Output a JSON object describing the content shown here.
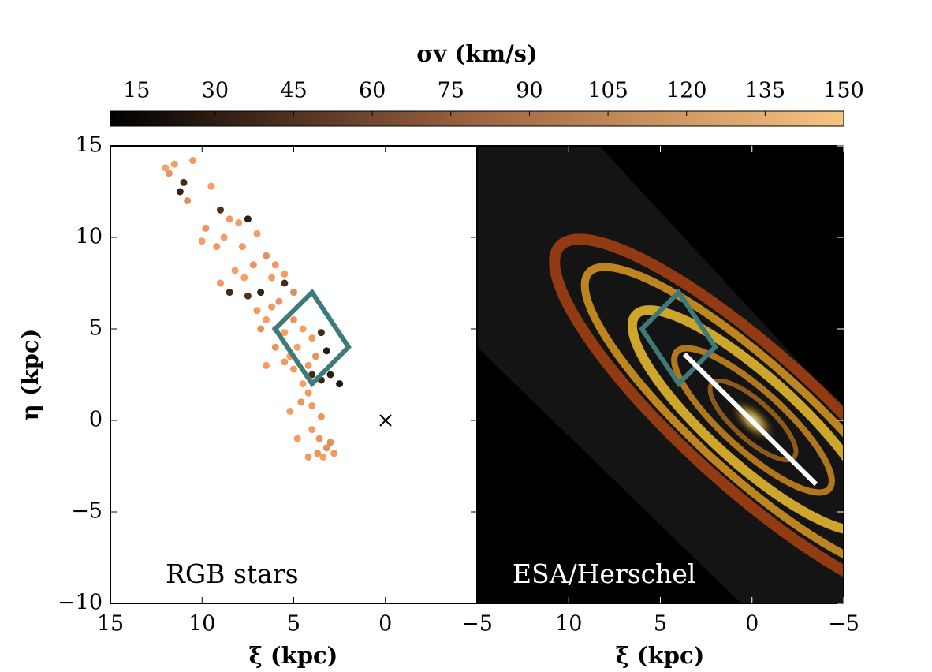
{
  "chart_data": [
    {
      "type": "scatter",
      "colorbar": {
        "label": "σv (km/s)",
        "lim": [
          10,
          150
        ],
        "ticks": [
          15,
          30,
          45,
          60,
          75,
          90,
          105,
          120,
          135,
          150
        ]
      },
      "xlabel": "ξ (kpc)",
      "ylabel": "η (kpc)",
      "annotation": "RGB stars",
      "xlim": [
        15,
        -5
      ],
      "ylim": [
        -10,
        15
      ],
      "xticks": [
        15,
        10,
        5,
        0,
        {
          "value": -5,
          "label": "−5"
        }
      ],
      "yticks": [
        15,
        10,
        5,
        0,
        {
          "value": -5,
          "label": "−5"
        },
        {
          "value": -10,
          "label": "−10"
        }
      ],
      "x": [
        11.5,
        11.8,
        11,
        10.5,
        12,
        11.2,
        10.8,
        9.5,
        9,
        8.5,
        8.8,
        9.2,
        10,
        9.8,
        8,
        7.5,
        7.8,
        7,
        6.5,
        6,
        7.2,
        8.2,
        9,
        8.5,
        7.7,
        6.8,
        6.2,
        5.5,
        5,
        5.8,
        7,
        7.5,
        6.5,
        6,
        5.5,
        5,
        4.5,
        4,
        3.5,
        4.8,
        5.2,
        4.2,
        3.8,
        3.2,
        4,
        5,
        6,
        6.5,
        5.5,
        4.5,
        3.5,
        3,
        2.5,
        4.2,
        4.6,
        5.2,
        4,
        3.6,
        3.2,
        4.8,
        4.2,
        3.7,
        3.4,
        3,
        2.8,
        3.5,
        4,
        5.5,
        6.2,
        6.8
      ],
      "y": [
        14,
        13.5,
        13,
        14.2,
        13.8,
        12.5,
        12,
        12.8,
        11.5,
        11,
        10,
        9.5,
        9.8,
        10.5,
        10.8,
        11,
        9.5,
        10.2,
        9,
        8.5,
        8.5,
        8.2,
        7.5,
        7,
        7.8,
        7,
        7.8,
        8,
        7,
        6.5,
        6,
        6.8,
        5.5,
        5,
        4.8,
        5.5,
        5,
        4.5,
        4.8,
        4,
        3.5,
        3,
        3.5,
        3.8,
        2.5,
        2.8,
        4,
        3,
        3.2,
        2,
        2.2,
        2.5,
        2,
        1.5,
        1,
        0.5,
        -0.5,
        -1,
        -1.5,
        -1,
        -2,
        -1.8,
        -2,
        -1.2,
        -1.8,
        0.2,
        0.8,
        7.5,
        6.2,
        5
      ],
      "c": [
        120,
        115,
        40,
        118,
        122,
        35,
        110,
        120,
        45,
        118,
        120,
        118,
        122,
        115,
        120,
        30,
        118,
        120,
        112,
        118,
        115,
        120,
        118,
        40,
        122,
        35,
        118,
        120,
        110,
        115,
        118,
        45,
        120,
        118,
        122,
        115,
        120,
        118,
        40,
        122,
        120,
        118,
        115,
        30,
        40,
        118,
        115,
        120,
        118,
        122,
        35,
        30,
        25,
        118,
        115,
        120,
        118,
        115,
        112,
        120,
        118,
        115,
        120,
        112,
        118,
        115,
        118,
        40,
        118,
        112
      ]
    },
    {
      "type": "image",
      "xlabel": "ξ (kpc)",
      "annotation": "ESA/Herschel",
      "xlim": [
        15,
        -5
      ],
      "ylim": [
        -10,
        15
      ],
      "xticks": [
        10,
        5,
        0,
        {
          "value": -5,
          "label": "−5"
        }
      ],
      "yticks": [
        15,
        10,
        5,
        0,
        -5,
        -10
      ]
    }
  ]
}
